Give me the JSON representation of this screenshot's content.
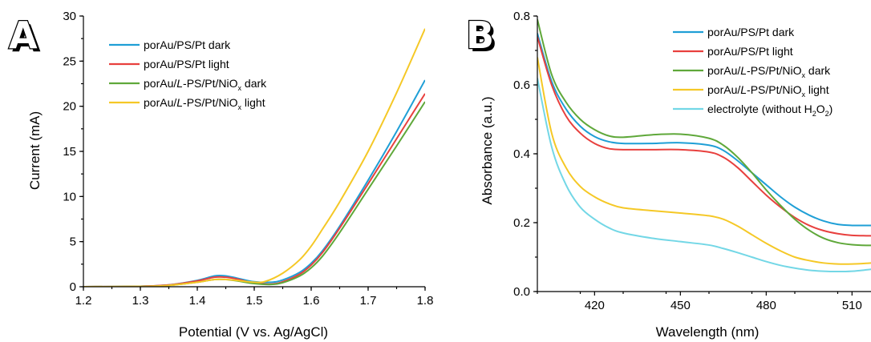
{
  "chart_data": [
    {
      "panel": "A",
      "type": "line",
      "xlabel": "Potential (V vs. Ag/AgCl)",
      "ylabel": "Current (mA)",
      "xlim": [
        1.2,
        1.8
      ],
      "ylim": [
        0,
        30
      ],
      "xticks": [
        "1.2",
        "1.3",
        "1.4",
        "1.5",
        "1.6",
        "1.7",
        "1.8"
      ],
      "yticks": [
        "0",
        "5",
        "10",
        "15",
        "20",
        "25",
        "30"
      ],
      "grid": false,
      "legend_position": "top-left",
      "series": [
        {
          "name": "porAu/PS/Pt dark",
          "name_parts": [
            "porAu/",
            "",
            "PS/Pt dark",
            "",
            ""
          ],
          "color": "#1f9fd6",
          "x": [
            1.2,
            1.3,
            1.35,
            1.4,
            1.43,
            1.45,
            1.47,
            1.5,
            1.53,
            1.55,
            1.58,
            1.6,
            1.62,
            1.65,
            1.7,
            1.75,
            1.8
          ],
          "y": [
            0,
            0.05,
            0.2,
            0.7,
            1.2,
            1.2,
            0.95,
            0.55,
            0.5,
            0.75,
            1.6,
            2.6,
            4.0,
            6.7,
            11.8,
            17.2,
            22.9
          ]
        },
        {
          "name": "porAu/PS/Pt light",
          "name_parts": [
            "porAu/",
            "",
            "PS/Pt light",
            "",
            ""
          ],
          "color": "#e8403e",
          "x": [
            1.2,
            1.3,
            1.35,
            1.4,
            1.43,
            1.45,
            1.47,
            1.5,
            1.53,
            1.55,
            1.58,
            1.6,
            1.62,
            1.65,
            1.7,
            1.75,
            1.8
          ],
          "y": [
            0,
            0.05,
            0.2,
            0.65,
            1.05,
            1.05,
            0.85,
            0.4,
            0.3,
            0.55,
            1.4,
            2.4,
            3.8,
            6.5,
            11.4,
            16.4,
            21.4
          ]
        },
        {
          "name": "porAu/L-PS/Pt/NiOx dark",
          "name_parts": [
            "porAu/",
            "L",
            "-PS/Pt/NiO",
            "x",
            " dark"
          ],
          "color": "#5fa83a",
          "x": [
            1.2,
            1.3,
            1.35,
            1.4,
            1.43,
            1.45,
            1.47,
            1.5,
            1.53,
            1.55,
            1.58,
            1.6,
            1.62,
            1.65,
            1.7,
            1.75,
            1.8
          ],
          "y": [
            0,
            0.03,
            0.15,
            0.5,
            0.8,
            0.8,
            0.65,
            0.35,
            0.25,
            0.45,
            1.2,
            2.1,
            3.4,
            6.0,
            10.8,
            15.6,
            20.5
          ]
        },
        {
          "name": "porAu/L-PS/Pt/NiOx light",
          "name_parts": [
            "porAu/",
            "L",
            "-PS/Pt/NiO",
            "x",
            " light"
          ],
          "color": "#f5c826",
          "x": [
            1.2,
            1.3,
            1.35,
            1.4,
            1.43,
            1.45,
            1.47,
            1.5,
            1.52,
            1.55,
            1.58,
            1.6,
            1.62,
            1.65,
            1.7,
            1.75,
            1.8
          ],
          "y": [
            0,
            0.03,
            0.15,
            0.5,
            0.8,
            0.8,
            0.7,
            0.5,
            0.6,
            1.5,
            3.0,
            4.5,
            6.4,
            9.4,
            15.0,
            21.5,
            28.6
          ]
        }
      ]
    },
    {
      "panel": "B",
      "type": "line",
      "xlabel": "Wavelength (nm)",
      "ylabel": "Absorbance (a.u.)",
      "xlim": [
        400,
        520
      ],
      "ylim": [
        0.0,
        0.8
      ],
      "xticks": [
        "420",
        "450",
        "480",
        "510"
      ],
      "yticks": [
        "0.0",
        "0.2",
        "0.4",
        "0.6",
        "0.8"
      ],
      "grid": false,
      "legend_position": "top-right",
      "series": [
        {
          "name": "porAu/PS/Pt dark",
          "name_parts": [
            "porAu/",
            "",
            "PS/Pt dark",
            "",
            ""
          ],
          "color": "#1f9fd6",
          "x": [
            400,
            405,
            410,
            415,
            420,
            425,
            430,
            440,
            450,
            460,
            465,
            470,
            475,
            480,
            485,
            490,
            495,
            500,
            505,
            510,
            515,
            520
          ],
          "y": [
            0.75,
            0.61,
            0.53,
            0.48,
            0.45,
            0.435,
            0.43,
            0.43,
            0.432,
            0.425,
            0.41,
            0.38,
            0.345,
            0.31,
            0.275,
            0.245,
            0.222,
            0.205,
            0.195,
            0.192,
            0.192,
            0.192
          ]
        },
        {
          "name": "porAu/PS/Pt light",
          "name_parts": [
            "porAu/",
            "",
            "PS/Pt light",
            "",
            ""
          ],
          "color": "#e8403e",
          "x": [
            400,
            405,
            410,
            415,
            420,
            425,
            430,
            440,
            450,
            460,
            465,
            470,
            475,
            480,
            485,
            490,
            495,
            500,
            505,
            510,
            515,
            520
          ],
          "y": [
            0.74,
            0.6,
            0.51,
            0.46,
            0.43,
            0.415,
            0.412,
            0.412,
            0.412,
            0.405,
            0.39,
            0.36,
            0.32,
            0.28,
            0.245,
            0.215,
            0.192,
            0.177,
            0.168,
            0.163,
            0.162,
            0.162
          ]
        },
        {
          "name": "porAu/L-PS/Pt/NiOx dark",
          "name_parts": [
            "porAu/",
            "L",
            "-PS/Pt/NiO",
            "x",
            " dark"
          ],
          "color": "#5fa83a",
          "x": [
            400,
            405,
            410,
            415,
            420,
            425,
            430,
            440,
            450,
            460,
            465,
            470,
            475,
            480,
            485,
            490,
            495,
            500,
            505,
            510,
            515,
            520
          ],
          "y": [
            0.79,
            0.63,
            0.55,
            0.5,
            0.47,
            0.452,
            0.448,
            0.455,
            0.457,
            0.445,
            0.425,
            0.39,
            0.345,
            0.295,
            0.25,
            0.21,
            0.178,
            0.155,
            0.142,
            0.136,
            0.134,
            0.134
          ]
        },
        {
          "name": "porAu/L-PS/Pt/NiOx light",
          "name_parts": [
            "porAu/",
            "L",
            "-PS/Pt/NiO",
            "x",
            " light"
          ],
          "color": "#f5c826",
          "x": [
            400,
            405,
            410,
            415,
            420,
            425,
            430,
            440,
            450,
            460,
            465,
            470,
            475,
            480,
            485,
            490,
            495,
            500,
            505,
            510,
            515,
            520
          ],
          "y": [
            0.68,
            0.46,
            0.36,
            0.305,
            0.275,
            0.255,
            0.243,
            0.235,
            0.228,
            0.22,
            0.21,
            0.19,
            0.165,
            0.14,
            0.118,
            0.1,
            0.09,
            0.083,
            0.08,
            0.08,
            0.082,
            0.085
          ]
        },
        {
          "name": "electrolyte (without H2O2)",
          "name_parts": [
            "electrolyte (without H",
            "",
            "",
            "2",
            "O",
            "2",
            ")"
          ],
          "color": "#73d7e6",
          "x": [
            400,
            405,
            410,
            415,
            420,
            425,
            430,
            440,
            450,
            460,
            465,
            470,
            475,
            480,
            485,
            490,
            495,
            500,
            505,
            510,
            515,
            520
          ],
          "y": [
            0.62,
            0.42,
            0.31,
            0.245,
            0.21,
            0.185,
            0.17,
            0.155,
            0.145,
            0.135,
            0.125,
            0.113,
            0.1,
            0.087,
            0.076,
            0.068,
            0.062,
            0.059,
            0.058,
            0.059,
            0.063,
            0.068
          ]
        }
      ]
    }
  ],
  "panel_labels": [
    "A",
    "B"
  ]
}
